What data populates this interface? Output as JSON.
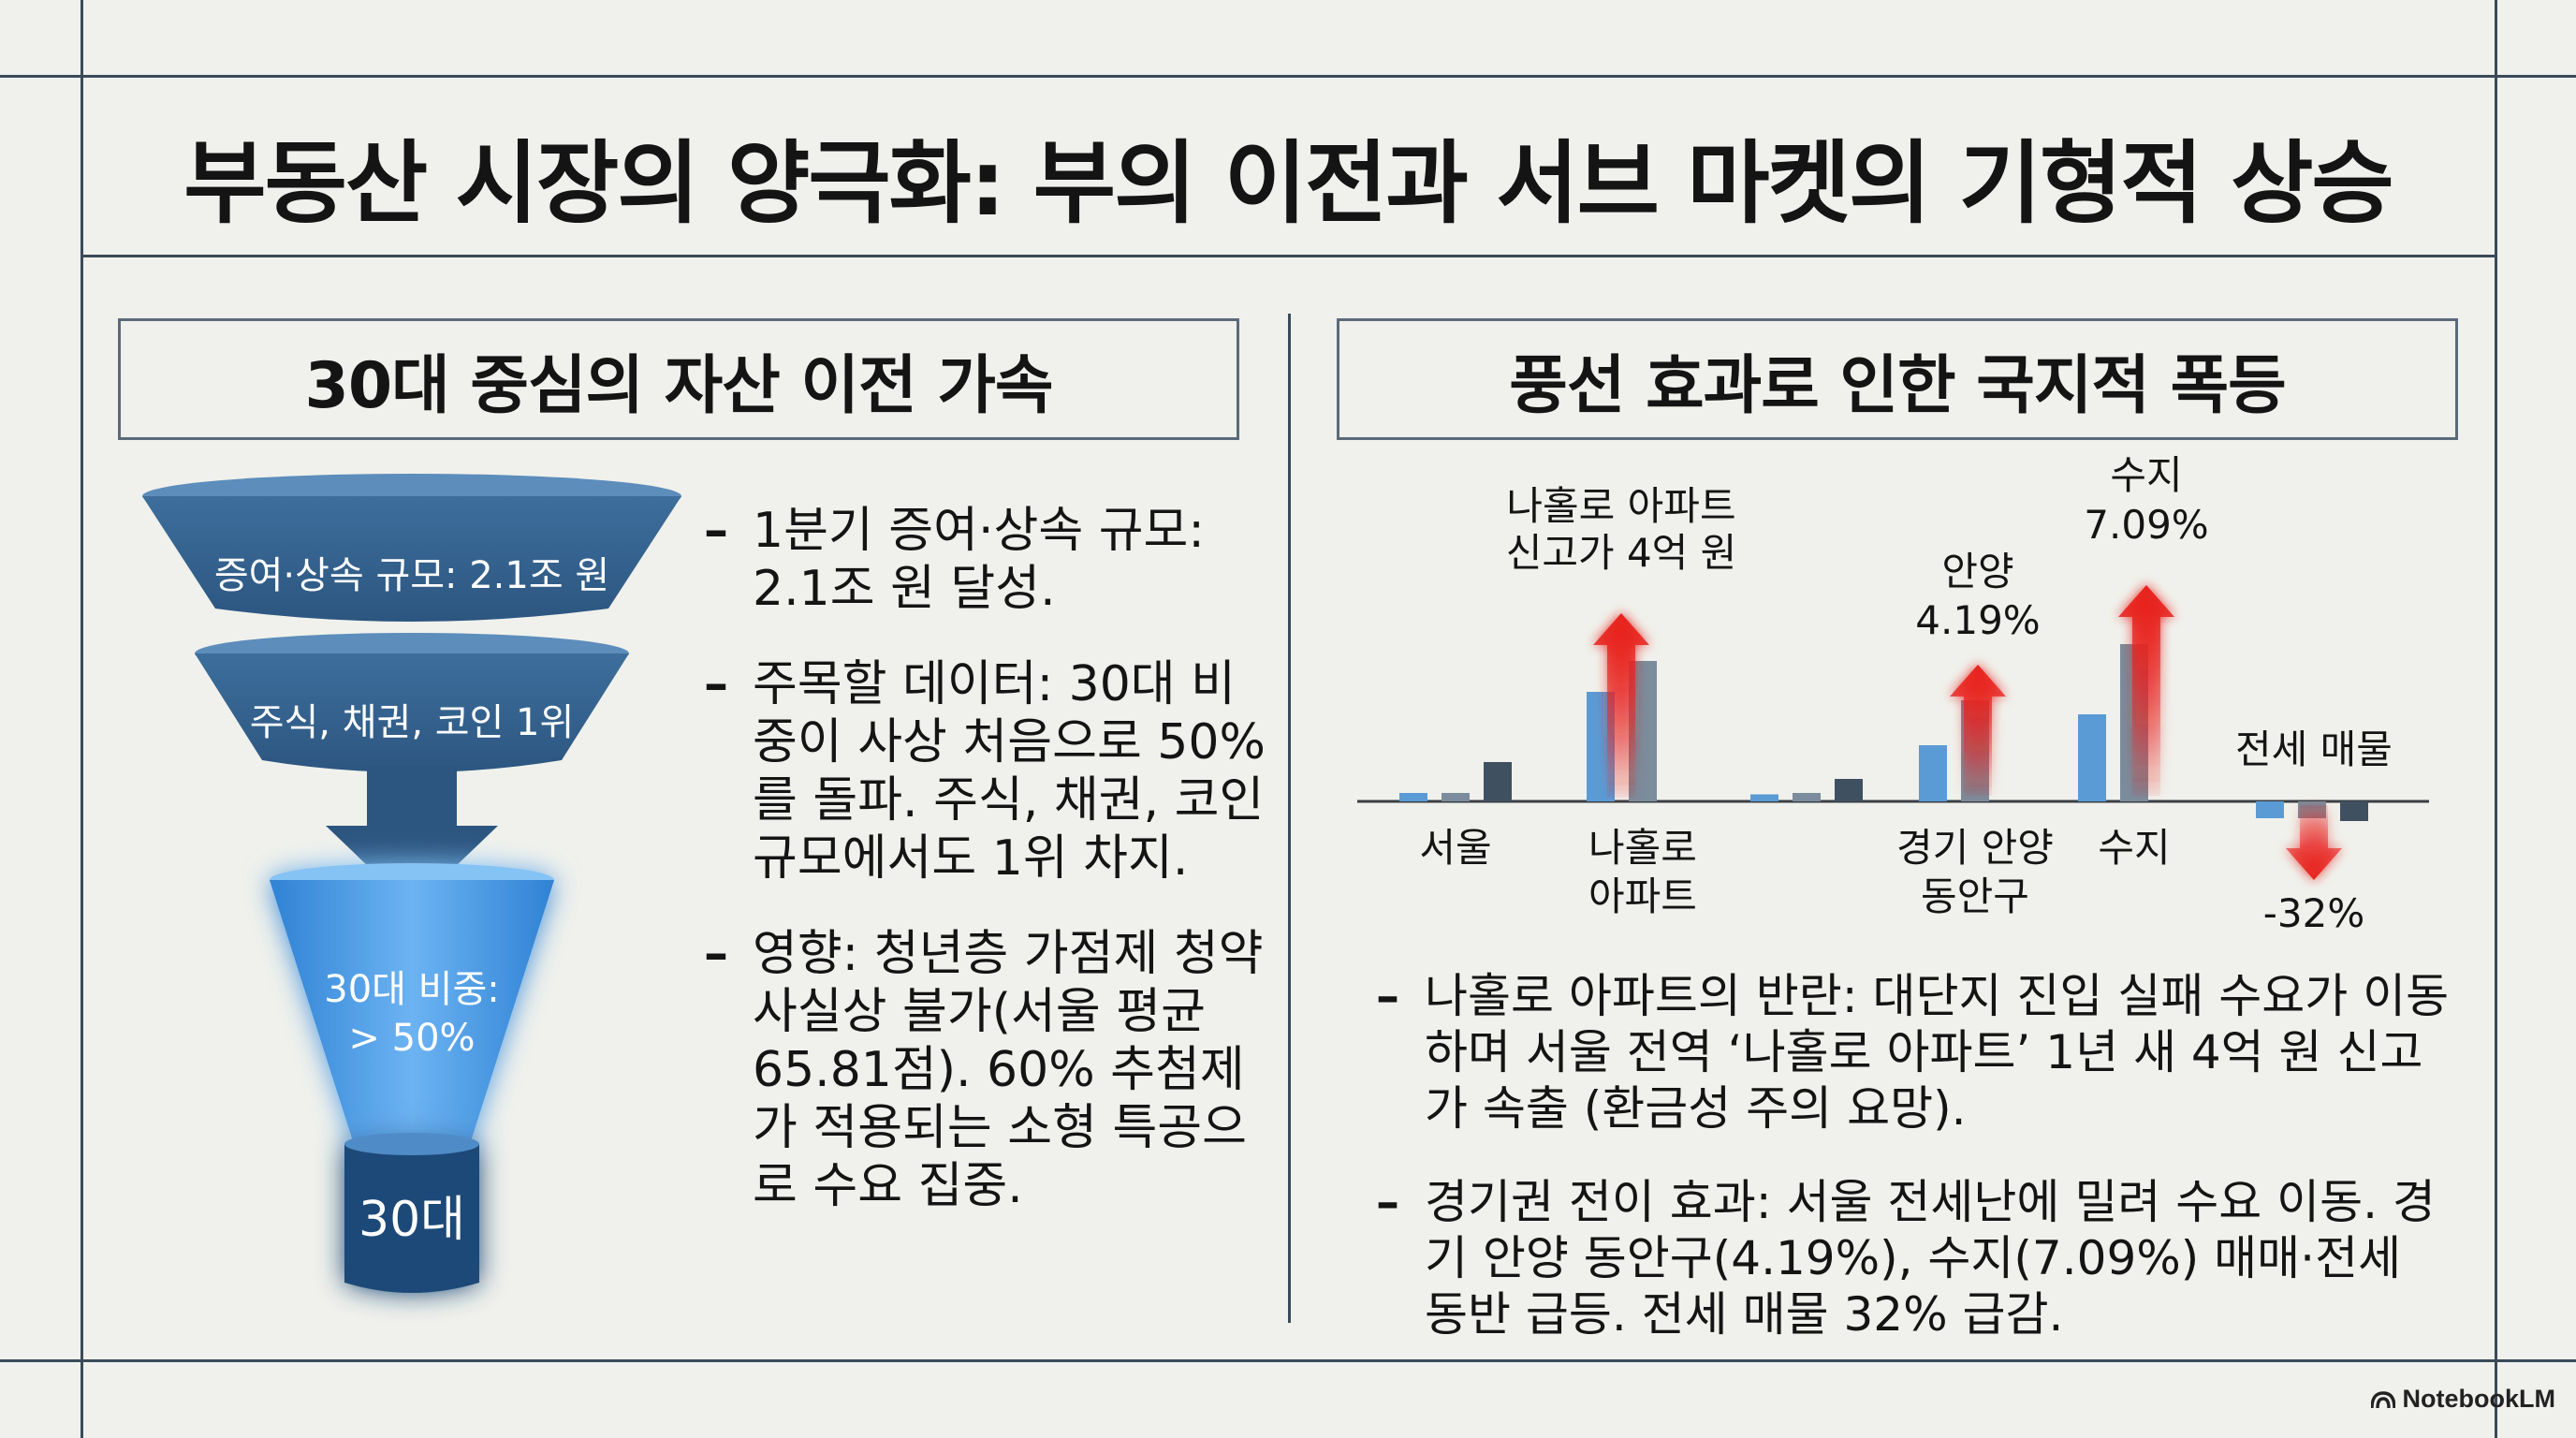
{
  "title": "부동산 시장의 양극화: 부의 이전과 서브 마켓의 기형적 상승",
  "left_panel": {
    "heading": "30대 중심의 자산 이전 가속",
    "funnel": {
      "layer1": "증여·상속 규모: 2.1조 원",
      "layer2": "주식, 채권, 코인 1위",
      "layer3_line1": "30대 비중:",
      "layer3_line2": "> 50%",
      "base": "30대"
    },
    "bullets": [
      "1분기 증여·상속 규모: 2.1조 원 달성.",
      "주목할 데이터: 30대 비중이 사상 처음으로 50%를 돌파. 주식, 채권, 코인 규모에서도 1위 차지.",
      "영향: 청년층 가점제 청약 사실상 불가(서울 평균 65.81점). 60% 추첨제가 적용되는 소형 특공으로 수요 집중."
    ]
  },
  "right_panel": {
    "heading": "풍선 효과로 인한 국지적 폭등",
    "bullets": [
      "나홀로 아파트의 반란: 대단지 진입 실패 수요가 이동하며 서울 전역 ‘나홀로 아파트’ 1년 새 4억 원 신고가 속출 (환금성 주의 요망).",
      "경기권 전이 효과: 서울 전세난에 밀려 수요 이동. 경기 안양 동안구(4.19%), 수지(7.09%) 매매·전세 동반 급등. 전세 매물 32% 급감."
    ]
  },
  "chart_data": {
    "type": "bar",
    "categories": [
      "서울",
      "나홀로 아파트",
      "",
      "경기 안양 동안구",
      "수지",
      "전세 매물"
    ],
    "category_labels": [
      [
        "서울"
      ],
      [
        "나홀로",
        "아파트"
      ],
      [
        ""
      ],
      [
        "경기 안양",
        "동안구"
      ],
      [
        "수지"
      ],
      [
        ""
      ]
    ],
    "bars": [
      [
        0.06,
        0.06,
        0.28
      ],
      [
        0.78,
        1.0,
        0.0
      ],
      [
        0.05,
        0.06,
        0.16
      ],
      [
        0.4,
        0.72,
        0.0
      ],
      [
        0.62,
        1.12,
        0.0
      ],
      [
        -0.12,
        -0.12,
        -0.14
      ]
    ],
    "annotations": [
      {
        "category": "나홀로 아파트",
        "direction": "up",
        "text": [
          "나홀로 아파트",
          "신고가 4억 원"
        ]
      },
      {
        "category": "경기 안양 동안구",
        "direction": "up",
        "text": [
          "안양",
          "4.19%"
        ]
      },
      {
        "category": "수지",
        "direction": "up",
        "text": [
          "수지",
          "7.09%"
        ]
      },
      {
        "category": "전세 매물",
        "direction": "down",
        "text": [
          "전세 매물"
        ],
        "value_text": "-32%"
      }
    ],
    "colors": {
      "light": "#5b9bd5",
      "mid": "#7b8c9c",
      "dark": "#3f5061",
      "arrow": "#e8221e"
    },
    "grid": false,
    "legend": "none"
  },
  "brand": "NotebookLM"
}
